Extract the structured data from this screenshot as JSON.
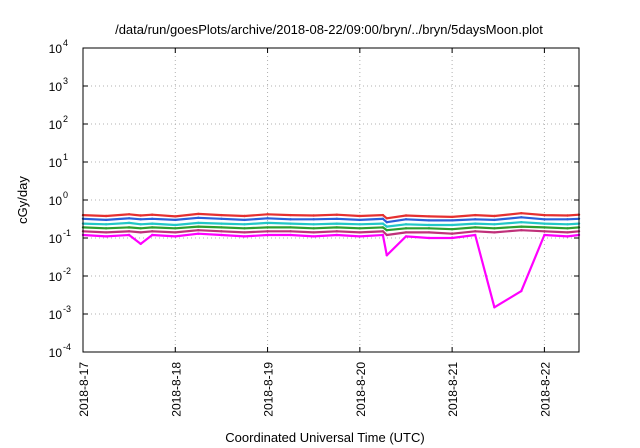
{
  "chart_data": {
    "type": "line",
    "title": "/data/run/goesPlots/archive/2018-08-22/09:00/bryn/../bryn/5daysMoon.plot",
    "xlabel": "Coordinated Universal Time (UTC)",
    "ylabel": "cGy/day",
    "yscale": "log",
    "ylim": [
      0.0001,
      10000
    ],
    "xlim": [
      "2018-08-17 00:00",
      "2018-08-22 09:00"
    ],
    "grid": true,
    "x_ticks": [
      "2018-8-17",
      "2018-8-18",
      "2018-8-19",
      "2018-8-20",
      "2018-8-21",
      "2018-8-22"
    ],
    "y_ticks": [
      {
        "base": "10",
        "exp": "-4"
      },
      {
        "base": "10",
        "exp": "-3"
      },
      {
        "base": "10",
        "exp": "-2"
      },
      {
        "base": "10",
        "exp": "-1"
      },
      {
        "base": "10",
        "exp": "0"
      },
      {
        "base": "10",
        "exp": "1"
      },
      {
        "base": "10",
        "exp": "2"
      },
      {
        "base": "10",
        "exp": "3"
      },
      {
        "base": "10",
        "exp": "4"
      }
    ],
    "x": [
      "2018-08-17 00:00",
      "2018-08-17 06:00",
      "2018-08-17 12:00",
      "2018-08-17 15:00",
      "2018-08-17 18:00",
      "2018-08-18 00:00",
      "2018-08-18 06:00",
      "2018-08-18 12:00",
      "2018-08-18 18:00",
      "2018-08-19 00:00",
      "2018-08-19 06:00",
      "2018-08-19 12:00",
      "2018-08-19 18:00",
      "2018-08-20 00:00",
      "2018-08-20 06:00",
      "2018-08-20 07:00",
      "2018-08-20 12:00",
      "2018-08-20 18:00",
      "2018-08-21 00:00",
      "2018-08-21 06:00",
      "2018-08-21 11:00",
      "2018-08-21 18:00",
      "2018-08-22 00:00",
      "2018-08-22 06:00",
      "2018-08-22 09:00"
    ],
    "series": [
      {
        "color": "#e53030",
        "values": [
          0.4,
          0.38,
          0.42,
          0.39,
          0.41,
          0.37,
          0.43,
          0.4,
          0.38,
          0.42,
          0.4,
          0.39,
          0.41,
          0.38,
          0.4,
          0.33,
          0.39,
          0.37,
          0.36,
          0.4,
          0.38,
          0.45,
          0.4,
          0.39,
          0.41
        ]
      },
      {
        "color": "#2b5fd9",
        "values": [
          0.32,
          0.3,
          0.33,
          0.31,
          0.32,
          0.3,
          0.34,
          0.32,
          0.3,
          0.33,
          0.31,
          0.31,
          0.32,
          0.3,
          0.32,
          0.26,
          0.31,
          0.29,
          0.29,
          0.31,
          0.3,
          0.35,
          0.31,
          0.31,
          0.32
        ]
      },
      {
        "color": "#22c7c7",
        "values": [
          0.24,
          0.23,
          0.25,
          0.23,
          0.24,
          0.22,
          0.25,
          0.24,
          0.23,
          0.25,
          0.24,
          0.23,
          0.24,
          0.23,
          0.24,
          0.2,
          0.23,
          0.22,
          0.22,
          0.24,
          0.23,
          0.26,
          0.24,
          0.23,
          0.24
        ]
      },
      {
        "color": "#2e9e2e",
        "values": [
          0.19,
          0.18,
          0.19,
          0.18,
          0.19,
          0.18,
          0.2,
          0.19,
          0.18,
          0.19,
          0.19,
          0.18,
          0.19,
          0.18,
          0.19,
          0.16,
          0.18,
          0.18,
          0.17,
          0.19,
          0.18,
          0.2,
          0.19,
          0.18,
          0.19
        ]
      },
      {
        "color": "#c0307a",
        "values": [
          0.15,
          0.14,
          0.15,
          0.14,
          0.15,
          0.14,
          0.16,
          0.15,
          0.14,
          0.15,
          0.15,
          0.14,
          0.15,
          0.14,
          0.15,
          0.12,
          0.14,
          0.14,
          0.13,
          0.15,
          0.14,
          0.16,
          0.15,
          0.14,
          0.15
        ]
      },
      {
        "color": "#ff00ff",
        "values": [
          0.12,
          0.11,
          0.12,
          0.07,
          0.12,
          0.11,
          0.13,
          0.12,
          0.11,
          0.12,
          0.12,
          0.11,
          0.12,
          0.11,
          0.12,
          0.035,
          0.11,
          0.1,
          0.1,
          0.12,
          0.0015,
          0.004,
          0.12,
          0.11,
          0.12
        ]
      }
    ]
  }
}
